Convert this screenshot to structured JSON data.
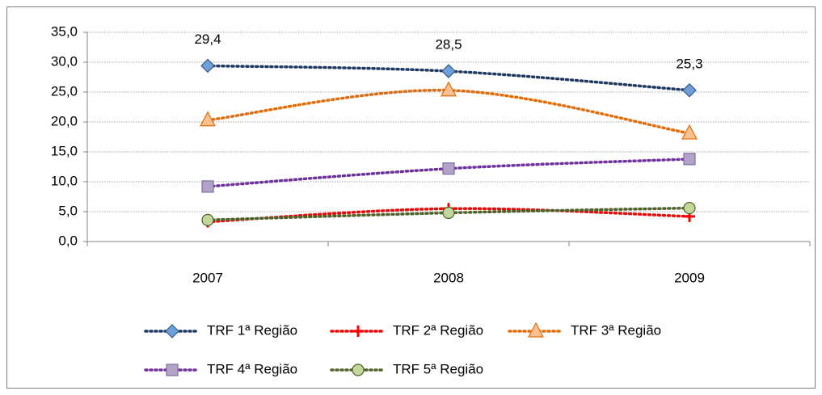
{
  "chart_data": {
    "type": "line",
    "categories": [
      "2007",
      "2008",
      "2009"
    ],
    "series": [
      {
        "name": "TRF 1ª Região",
        "color": "#1f3864",
        "marker": "diamond",
        "marker_fill": "#6f9fd8",
        "marker_stroke": "#385d8a",
        "values": [
          29.4,
          28.5,
          25.3
        ],
        "value_labels": [
          "29,4",
          "28,5",
          "25,3"
        ]
      },
      {
        "name": "TRF 2ª Região",
        "color": "#ff0000",
        "marker": "plus",
        "marker_fill": "#ff6060",
        "marker_stroke": "#ff0000",
        "values": [
          3.3,
          5.5,
          4.2
        ]
      },
      {
        "name": "TRF 3ª Região",
        "color": "#e46c0a",
        "marker": "triangle",
        "marker_fill": "#fac090",
        "marker_stroke": "#e46c0a",
        "values": [
          20.3,
          25.3,
          18.1
        ]
      },
      {
        "name": "TRF 4ª Região",
        "color": "#7030a0",
        "marker": "square",
        "marker_fill": "#b3a2c7",
        "marker_stroke": "#7f6fa3",
        "values": [
          9.2,
          12.2,
          13.8
        ]
      },
      {
        "name": "TRF 5ª Região",
        "color": "#4f6228",
        "marker": "circle",
        "marker_fill": "#c3d69b",
        "marker_stroke": "#4f6228",
        "values": [
          3.6,
          4.8,
          5.6
        ]
      }
    ],
    "ylim": [
      0,
      35
    ],
    "yticks": [
      {
        "value": 0,
        "label": "0,0"
      },
      {
        "value": 5,
        "label": "5,0"
      },
      {
        "value": 10,
        "label": "10,0"
      },
      {
        "value": 15,
        "label": "15,0"
      },
      {
        "value": 20,
        "label": "20,0"
      },
      {
        "value": 25,
        "label": "25,0"
      },
      {
        "value": 30,
        "label": "30,0"
      },
      {
        "value": 35,
        "label": "35,0"
      }
    ],
    "grid": true,
    "legend": "bottom"
  }
}
